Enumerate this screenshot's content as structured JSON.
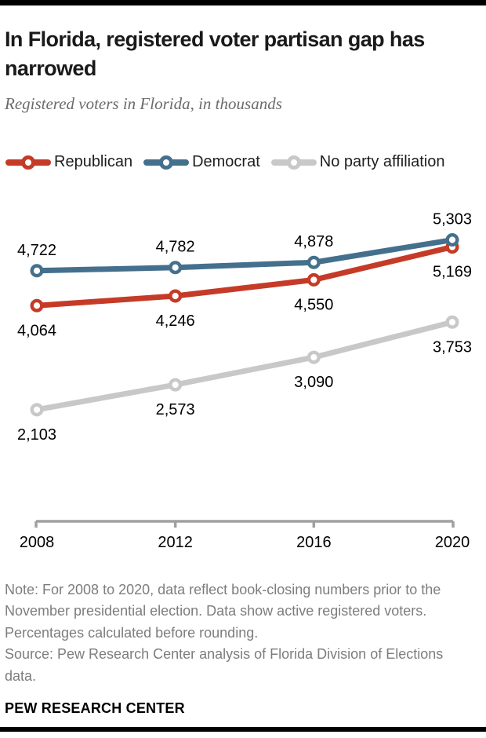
{
  "header": {
    "title": "In Florida, registered voter partisan gap has narrowed",
    "subtitle": "Registered voters in Florida, in thousands"
  },
  "chart_data": {
    "type": "line",
    "title": "In Florida, registered voter partisan gap has narrowed",
    "subtitle": "Registered voters in Florida, in thousands",
    "unit": "thousands of registered voters",
    "categories": [
      "2008",
      "2012",
      "2016",
      "2020"
    ],
    "x": [
      2008,
      2012,
      2016,
      2020
    ],
    "series": [
      {
        "name": "Republican",
        "color": "#c53b27",
        "values": [
          4064,
          4246,
          4550,
          5169
        ],
        "labels": [
          "4,064",
          "4,246",
          "4,550",
          "5,169"
        ],
        "label_position": "below"
      },
      {
        "name": "Democrat",
        "color": "#44708d",
        "values": [
          4722,
          4782,
          4878,
          5303
        ],
        "labels": [
          "4,722",
          "4,782",
          "4,878",
          "5,303"
        ],
        "label_position": "above"
      },
      {
        "name": "No party affiliation",
        "color": "#c8c8c8",
        "values": [
          2103,
          2573,
          3090,
          3753
        ],
        "labels": [
          "2,103",
          "2,573",
          "3,090",
          "3,753"
        ],
        "label_position": "below"
      }
    ],
    "draw_order": [
      2,
      0,
      1
    ],
    "ylim": [
      0,
      6430
    ],
    "grid": false,
    "legend_position": "top",
    "axis_color": "#a0a0a0",
    "label_color": "#000000"
  },
  "footer": {
    "note": "Note: For 2008 to 2020, data reflect book-closing numbers prior to the November presidential election. Data show active registered voters. Percentages calculated before rounding.",
    "source": "Source: Pew Research Center analysis of Florida Division of Elections data.",
    "brand": "PEW RESEARCH CENTER"
  }
}
